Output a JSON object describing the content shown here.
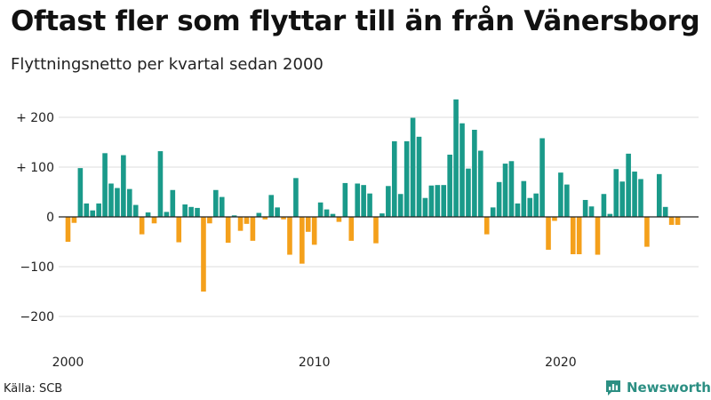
{
  "title": "Oftast fler som flyttar till än från Vänersborg",
  "subtitle": "Flyttningsnetto per kvartal sedan 2000",
  "source": "Källa: SCB",
  "brand": "Newsworthy",
  "colors": {
    "positive": "#1a9a8a",
    "negative": "#f4a01b",
    "grid": "#dddddd",
    "axis": "#222222"
  },
  "chart_data": {
    "type": "bar",
    "title": "Oftast fler som flyttar till än från Vänersborg",
    "subtitle": "Flyttningsnetto per kvartal sedan 2000",
    "x_start": 2000,
    "x_step": 0.25,
    "x_ticks": [
      {
        "value": 2000,
        "label": "2000"
      },
      {
        "value": 2010,
        "label": "2010"
      },
      {
        "value": 2020,
        "label": "2020"
      }
    ],
    "y_ticks": [
      {
        "value": 200,
        "label": "+ 200"
      },
      {
        "value": 100,
        "label": "+ 100"
      },
      {
        "value": 0,
        "label": "0"
      },
      {
        "value": -100,
        "label": "−100"
      },
      {
        "value": -200,
        "label": "−200"
      }
    ],
    "ylim": [
      -240,
      240
    ],
    "grid": true,
    "values": [
      -50,
      -12,
      98,
      27,
      13,
      27,
      128,
      67,
      58,
      124,
      56,
      24,
      -35,
      9,
      -13,
      132,
      10,
      54,
      -51,
      25,
      20,
      18,
      -150,
      -13,
      54,
      40,
      -52,
      3,
      -28,
      -14,
      -48,
      8,
      -5,
      44,
      19,
      -5,
      -76,
      78,
      -94,
      -30,
      -56,
      29,
      15,
      6,
      -10,
      68,
      -48,
      67,
      64,
      47,
      -53,
      7,
      62,
      152,
      46,
      152,
      199,
      161,
      38,
      63,
      64,
      64,
      125,
      236,
      188,
      97,
      175,
      133,
      -35,
      19,
      70,
      107,
      112,
      27,
      72,
      38,
      47,
      158,
      -66,
      -8,
      89,
      65,
      -75,
      -75,
      34,
      21,
      -76,
      46,
      6,
      96,
      71,
      127,
      91,
      76,
      -60,
      0,
      86,
      20,
      -16,
      -16
    ]
  }
}
